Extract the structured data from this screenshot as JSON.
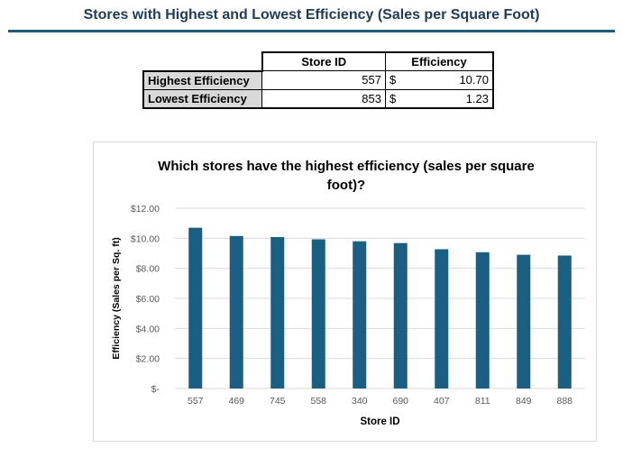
{
  "page": {
    "title": "Stores with Highest and Lowest Efficiency (Sales per Square Foot)"
  },
  "summary_table": {
    "headers": [
      "Store ID",
      "Efficiency"
    ],
    "rows": [
      {
        "label": "Highest Efficiency",
        "store_id": "557",
        "currency": "$",
        "efficiency": "10.70"
      },
      {
        "label": "Lowest Efficiency",
        "store_id": "853",
        "currency": "$",
        "efficiency": "1.23"
      }
    ]
  },
  "colors": {
    "bar": "#1a5f82",
    "title": "#1f3b57",
    "rule": "#1f5c7a",
    "row_label_bg": "#d9d9d9"
  },
  "chart_data": {
    "type": "bar",
    "title": "Which stores have the highest efficiency (sales per square foot)?",
    "xlabel": "Store ID",
    "ylabel": "Efficiency (Sales per Sq. ft)",
    "categories": [
      "557",
      "469",
      "745",
      "558",
      "340",
      "690",
      "407",
      "811",
      "849",
      "888"
    ],
    "values": [
      10.7,
      10.15,
      10.08,
      9.93,
      9.8,
      9.68,
      9.27,
      9.07,
      8.9,
      8.85
    ],
    "ylim": [
      0,
      12
    ],
    "yticks": [
      0,
      2,
      4,
      6,
      8,
      10,
      12
    ],
    "ytick_labels": [
      "$-",
      "$2.00",
      "$4.00",
      "$6.00",
      "$8.00",
      "$10.00",
      "$12.00"
    ],
    "grid": true,
    "legend": "none"
  }
}
